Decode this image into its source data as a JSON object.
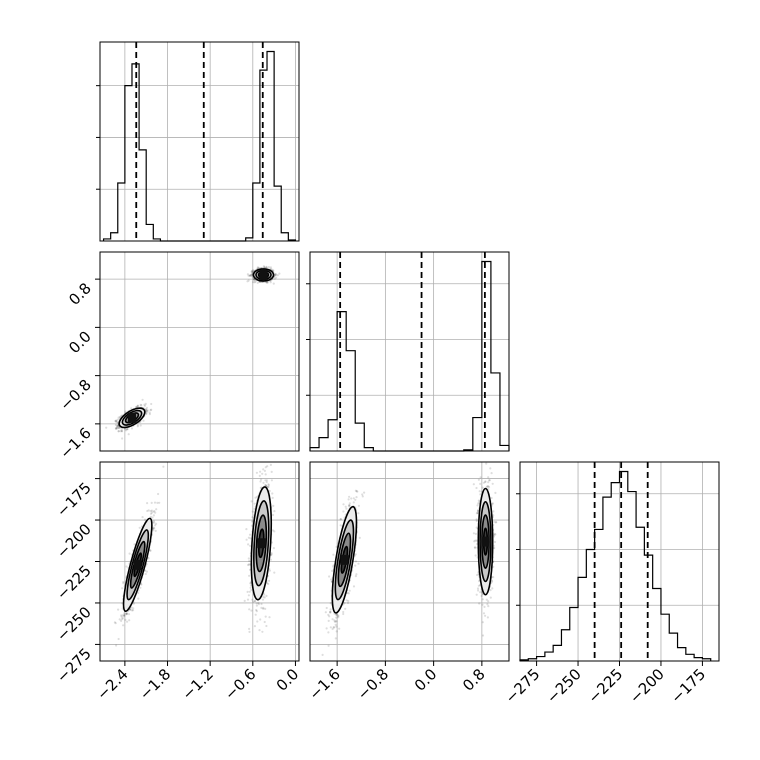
{
  "chart_data": {
    "type": "corner",
    "parameters": [
      {
        "name": "",
        "range": [
          -2.75,
          0.05
        ],
        "ticks": [
          -2.4,
          -1.8,
          -1.2,
          -0.6,
          0.0
        ],
        "tick_labels": [
          "−2.4",
          "−1.8",
          "−1.2",
          "−0.6",
          "0.0"
        ],
        "quantiles": [
          -2.24,
          -1.29,
          -0.46
        ],
        "histogram": {
          "bin_edges": [
            -2.7,
            -2.6,
            -2.5,
            -2.4,
            -2.3,
            -2.2,
            -2.1,
            -2.0,
            -1.9,
            -1.8,
            -1.7,
            -1.6,
            -1.5,
            -1.4,
            -1.3,
            -1.2,
            -1.1,
            -1.0,
            -0.9,
            -0.8,
            -0.7,
            -0.6,
            -0.5,
            -0.4,
            -0.3,
            -0.2,
            -0.1,
            0.0
          ],
          "counts": [
            2,
            8,
            56,
            150,
            171,
            88,
            16,
            2,
            0,
            0,
            0,
            0,
            0,
            0,
            0,
            0,
            0,
            0,
            0,
            0,
            3,
            56,
            165,
            183,
            53,
            8,
            1
          ]
        }
      },
      {
        "name": "",
        "range": [
          -2.05,
          1.25
        ],
        "ticks": [
          -1.6,
          -0.8,
          0.0,
          0.8
        ],
        "tick_labels": [
          "−1.6",
          "−0.8",
          "0.0",
          "0.8"
        ],
        "quantiles": [
          -1.55,
          -0.2,
          0.85
        ],
        "histogram": {
          "bin_edges": [
            -2.05,
            -1.9,
            -1.75,
            -1.6,
            -1.45,
            -1.3,
            -1.15,
            -1.0,
            -0.85,
            -0.7,
            -0.55,
            -0.4,
            -0.25,
            -0.1,
            0.05,
            0.2,
            0.35,
            0.5,
            0.65,
            0.8,
            0.95,
            1.1,
            1.25
          ],
          "counts": [
            3,
            12,
            28,
            125,
            90,
            25,
            3,
            0,
            0,
            0,
            0,
            0,
            0,
            0,
            0,
            0,
            0,
            1,
            30,
            170,
            70,
            5
          ]
        }
      },
      {
        "name": "",
        "range": [
          -285,
          -165
        ],
        "ticks": [
          -275,
          -250,
          -225,
          -200,
          -175
        ],
        "tick_labels": [
          "−275",
          "−250",
          "−225",
          "−200",
          "−175"
        ],
        "quantiles": [
          -240,
          -224,
          -208
        ],
        "histogram": {
          "bin_edges": [
            -285,
            -280,
            -275,
            -270,
            -265,
            -260,
            -255,
            -250,
            -245,
            -240,
            -235,
            -230,
            -225,
            -220,
            -215,
            -210,
            -205,
            -200,
            -195,
            -190,
            -185,
            -180,
            -175,
            -170
          ],
          "counts": [
            1,
            2,
            4,
            8,
            14,
            28,
            48,
            75,
            100,
            118,
            147,
            160,
            170,
            152,
            120,
            95,
            65,
            42,
            25,
            12,
            6,
            3,
            2
          ]
        }
      }
    ],
    "pairs": [
      {
        "x_param": 0,
        "y_param": 1,
        "clusters": [
          {
            "center": [
              -2.3,
              -1.5
            ],
            "sd": [
              0.09,
              0.08
            ],
            "rho": 0.6,
            "n": 900
          },
          {
            "center": [
              -0.45,
              0.87
            ],
            "sd": [
              0.07,
              0.05
            ],
            "rho": 0.0,
            "n": 900
          }
        ]
      },
      {
        "x_param": 0,
        "y_param": 2,
        "clusters": [
          {
            "center": [
              -2.22,
              -227
            ],
            "sd": [
              0.1,
              14
            ],
            "rho": 0.85,
            "n": 900
          },
          {
            "center": [
              -0.48,
              -214
            ],
            "sd": [
              0.07,
              17
            ],
            "rho": 0.35,
            "n": 900
          }
        ]
      },
      {
        "x_param": 1,
        "y_param": 2,
        "clusters": [
          {
            "center": [
              -1.48,
              -224
            ],
            "sd": [
              0.1,
              16
            ],
            "rho": 0.7,
            "n": 900
          },
          {
            "center": [
              0.86,
              -213
            ],
            "sd": [
              0.06,
              16
            ],
            "rho": 0.0,
            "n": 900
          }
        ]
      }
    ],
    "contour_levels_sigma": [
      0.5,
      1.0,
      1.5,
      2.0
    ],
    "grid": true,
    "colors": {
      "line": "#000000",
      "grid": "#b0b0b0",
      "points": "#000000",
      "fill_levels": [
        "#3c3c3c",
        "#8a8a8a",
        "#c8c8c8",
        "#ececec"
      ]
    }
  }
}
